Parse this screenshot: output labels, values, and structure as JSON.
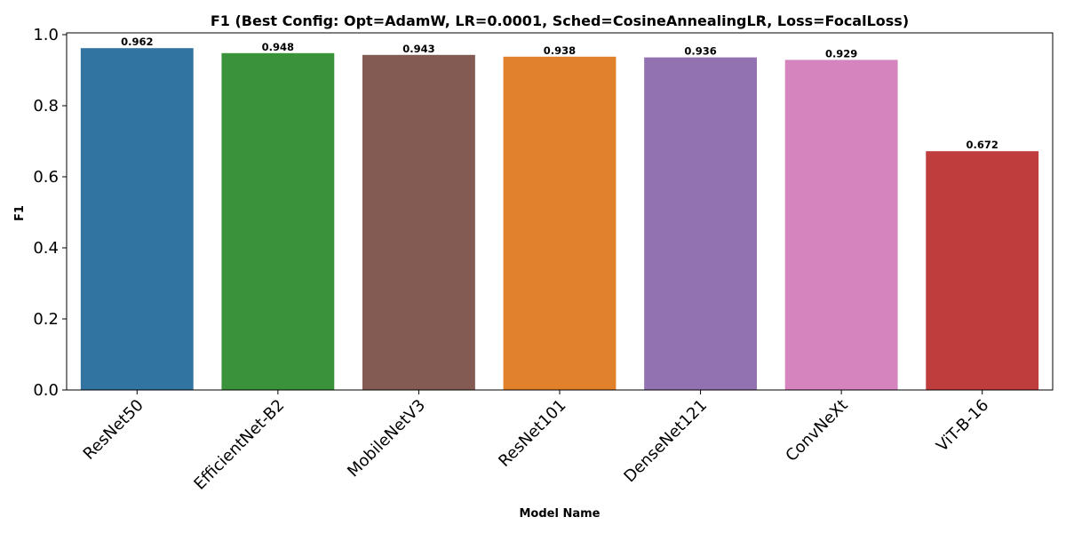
{
  "chart_data": {
    "type": "bar",
    "title": "F1 (Best Config: Opt=AdamW, LR=0.0001, Sched=CosineAnnealingLR, Loss=FocalLoss)",
    "xlabel": "Model Name",
    "ylabel": "F1",
    "categories": [
      "ResNet50",
      "EfficientNet-B2",
      "MobileNetV3",
      "ResNet101",
      "DenseNet121",
      "ConvNeXt",
      "ViT-B-16"
    ],
    "values": [
      0.962,
      0.948,
      0.943,
      0.938,
      0.936,
      0.929,
      0.672
    ],
    "value_labels": [
      "0.962",
      "0.948",
      "0.943",
      "0.938",
      "0.936",
      "0.929",
      "0.672"
    ],
    "colors": [
      "#3274a1",
      "#3a923a",
      "#845b53",
      "#e1812c",
      "#9372b2",
      "#d684bd",
      "#c03d3e"
    ],
    "ylim": [
      0,
      1.0
    ],
    "yticks": [
      0.0,
      0.2,
      0.4,
      0.6,
      0.8,
      1.0
    ],
    "ytick_labels": [
      "0.0",
      "0.2",
      "0.4",
      "0.6",
      "0.8",
      "1.0"
    ],
    "grid": false,
    "legend": "none"
  }
}
